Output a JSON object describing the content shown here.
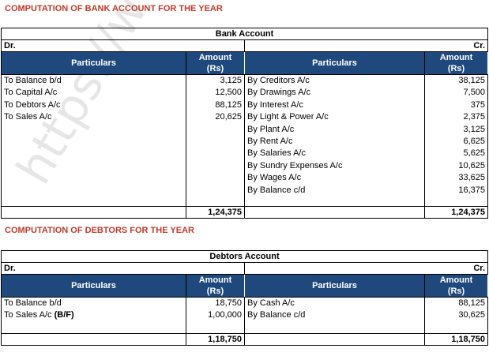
{
  "bank": {
    "heading": "COMPUTATION OF BANK ACCOUNT FOR THE YEAR",
    "title": "Bank Account",
    "dr": "Dr.",
    "cr": "Cr.",
    "col_particulars": "Particulars",
    "col_amount_1": "Amount",
    "col_amount_2": "(Rs)",
    "debit": [
      {
        "p": "To Balance b/d",
        "a": "3,125"
      },
      {
        "p": "To Capital A/c",
        "a": "12,500"
      },
      {
        "p": "To Debtors A/c",
        "a": "88,125"
      },
      {
        "p": "To Sales A/c",
        "a": "20,625"
      }
    ],
    "credit": [
      {
        "p": "By Creditors A/c",
        "a": "38,125"
      },
      {
        "p": "By Drawings A/c",
        "a": "7,500"
      },
      {
        "p": "By Interest A/c",
        "a": "375"
      },
      {
        "p": "By Light & Power A/c",
        "a": "2,375"
      },
      {
        "p": "By Plant A/c",
        "a": "3,125"
      },
      {
        "p": "By Rent A/c",
        "a": "6,625"
      },
      {
        "p": "By Salaries A/c",
        "a": "5,625"
      },
      {
        "p": "By Sundry Expenses A/c",
        "a": "10,625"
      },
      {
        "p": "By Wages A/c",
        "a": "33,625"
      },
      {
        "p": "By Balance c/d",
        "a": "16,375"
      }
    ],
    "total_dr": "1,24,375",
    "total_cr": "1,24,375"
  },
  "debtors": {
    "heading": "COMPUTATION OF DEBTORS FOR THE YEAR",
    "title": "Debtors Account",
    "dr": "Dr.",
    "cr": "Cr.",
    "col_particulars": "Particulars",
    "col_amount_1": "Amount",
    "col_amount_2": "(Rs)",
    "debit": [
      {
        "p": "To Balance b/d",
        "a": "18,750"
      },
      {
        "p": "To Sales A/c ",
        "bold": "(B/F)",
        "a": "1,00,000"
      }
    ],
    "credit": [
      {
        "p": "By Cash A/c",
        "a": "88,125"
      },
      {
        "p": "By Balance c/d",
        "a": "30,625"
      }
    ],
    "total_dr": "1,18,750",
    "total_cr": "1,18,750"
  },
  "watermark": "https://www."
}
